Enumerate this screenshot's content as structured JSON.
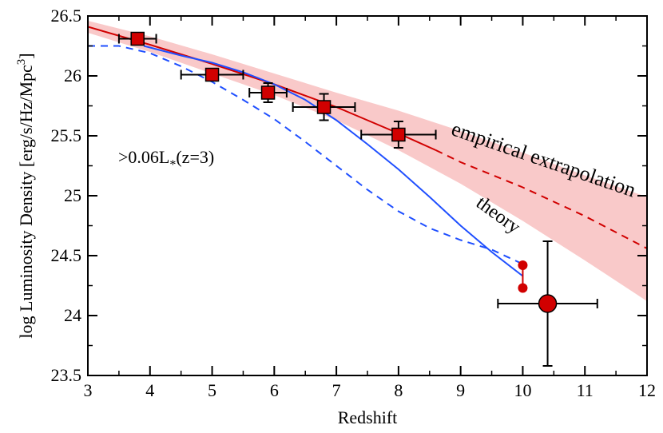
{
  "chart_data": {
    "type": "scatter",
    "xlabel": "Redshift",
    "ylabel_main": "log Luminosity Density [erg/s/Hz/Mpc",
    "ylabel_sup": "3",
    "ylabel_close": "]",
    "xlim": [
      3,
      12
    ],
    "ylim": [
      23.5,
      26.5
    ],
    "x_ticks": [
      "3",
      "4",
      "5",
      "6",
      "7",
      "8",
      "9",
      "10",
      "11",
      "12"
    ],
    "y_ticks": [
      "23.5",
      "24",
      "24.5",
      "25",
      "25.5",
      "26",
      "26.5"
    ],
    "x_tick_values": [
      3,
      4,
      5,
      6,
      7,
      8,
      9,
      10,
      11,
      12
    ],
    "y_tick_values": [
      23.5,
      24,
      24.5,
      25,
      25.5,
      26,
      26.5
    ],
    "annotation": {
      "prefix": ">0.06L",
      "sub": "*",
      "suffix": "(z=3)"
    },
    "labels": {
      "empirical": "empirical extrapolation",
      "theory": "theory"
    },
    "colors": {
      "red": "#d10000",
      "band": "#f9c9c9",
      "blue": "#1f4fff",
      "marker_edge": "#000000"
    },
    "square_points": [
      {
        "x": 3.8,
        "y": 26.31,
        "xerr": [
          0.3,
          0.3
        ],
        "yerr": [
          0.02,
          0.02
        ]
      },
      {
        "x": 5.0,
        "y": 26.01,
        "xerr": [
          0.5,
          0.5
        ],
        "yerr": [
          0.03,
          0.03
        ]
      },
      {
        "x": 5.9,
        "y": 25.86,
        "xerr": [
          0.3,
          0.3
        ],
        "yerr": [
          0.08,
          0.08
        ]
      },
      {
        "x": 6.8,
        "y": 25.74,
        "xerr": [
          0.5,
          0.5
        ],
        "yerr": [
          0.11,
          0.11
        ]
      },
      {
        "x": 8.0,
        "y": 25.51,
        "xerr": [
          0.6,
          0.6
        ],
        "yerr": [
          0.11,
          0.11
        ]
      }
    ],
    "big_circle": {
      "x": 10.4,
      "y": 24.1,
      "xerr": [
        0.8,
        0.8
      ],
      "yerr": [
        0.52,
        0.52
      ]
    },
    "small_circles": [
      {
        "x": 10.0,
        "y": 24.42
      },
      {
        "x": 10.0,
        "y": 24.23
      }
    ],
    "empirical_solid": {
      "x": [
        3,
        4,
        5,
        6,
        7,
        8,
        8.6
      ],
      "y": [
        26.41,
        26.26,
        26.1,
        25.93,
        25.74,
        25.52,
        25.38
      ]
    },
    "empirical_dashed": {
      "x": [
        8.6,
        9,
        10,
        11,
        12
      ],
      "y": [
        25.38,
        25.28,
        25.07,
        24.83,
        24.56
      ]
    },
    "band_upper": {
      "x": [
        3,
        4,
        5,
        6,
        7,
        8,
        9,
        10,
        11,
        12
      ],
      "y": [
        26.46,
        26.33,
        26.18,
        26.02,
        25.86,
        25.71,
        25.54,
        25.36,
        25.17,
        24.99
      ]
    },
    "band_lower": {
      "x": [
        3,
        4,
        5,
        6,
        7,
        8,
        9,
        10,
        11,
        12
      ],
      "y": [
        26.36,
        26.2,
        26.02,
        25.84,
        25.63,
        25.38,
        25.1,
        24.79,
        24.46,
        24.12
      ]
    },
    "theory_solid": {
      "x": [
        3.9,
        4.5,
        5,
        5.5,
        6,
        6.5,
        7,
        7.5,
        8,
        8.5,
        9,
        9.5,
        10
      ],
      "y": [
        26.25,
        26.17,
        26.11,
        26.03,
        25.93,
        25.8,
        25.63,
        25.43,
        25.22,
        24.99,
        24.75,
        24.53,
        24.33
      ]
    },
    "theory_dashed": {
      "x": [
        3,
        3.5,
        4,
        4.5,
        5,
        5.5,
        6,
        6.5,
        7,
        7.5,
        8,
        8.5,
        9,
        9.5,
        10
      ],
      "y": [
        26.25,
        26.25,
        26.19,
        26.08,
        25.95,
        25.8,
        25.64,
        25.45,
        25.25,
        25.05,
        24.87,
        24.73,
        24.63,
        24.55,
        24.43
      ]
    }
  }
}
